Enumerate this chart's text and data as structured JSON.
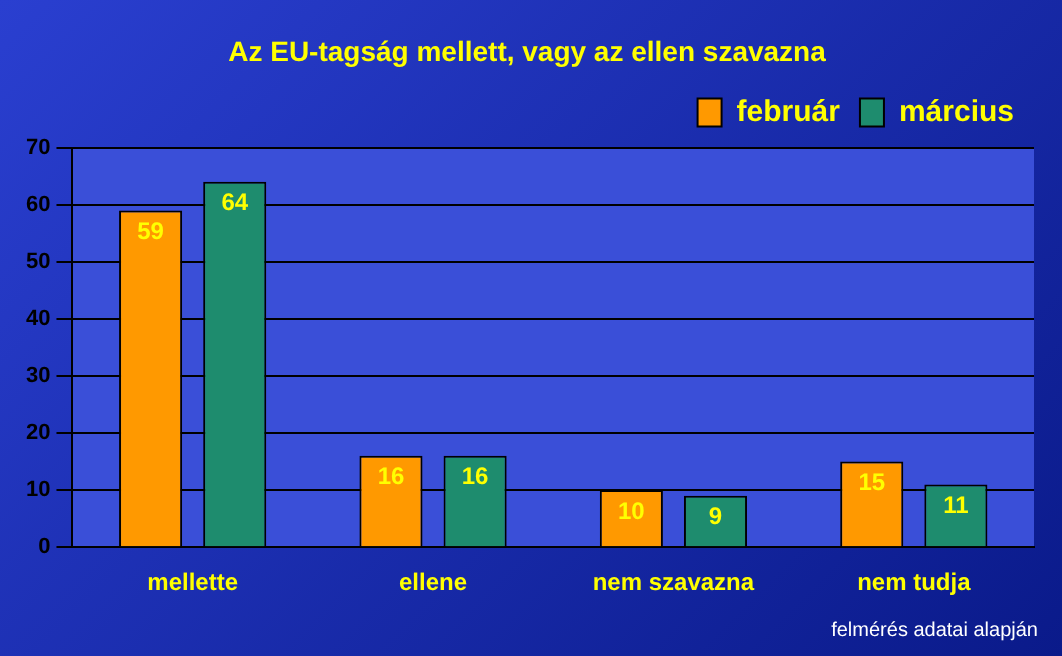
{
  "chart_data": {
    "type": "bar",
    "title": "Az EU-tagság mellett, vagy az ellen szavazna",
    "categories": [
      "mellette",
      "ellene",
      "nem szavazna",
      "nem tudja"
    ],
    "series": [
      {
        "name": "február",
        "color": "#ff9900",
        "values": [
          59,
          16,
          10,
          15
        ]
      },
      {
        "name": "március",
        "color": "#1e8c6e",
        "values": [
          64,
          16,
          9,
          11
        ]
      }
    ],
    "ylim": [
      0,
      70
    ],
    "yticks": [
      0,
      10,
      20,
      30,
      40,
      50,
      60,
      70
    ],
    "grid": "y",
    "legend": "top right",
    "data_labels": true,
    "annotations": [
      "felmérés adatai alapján"
    ]
  }
}
